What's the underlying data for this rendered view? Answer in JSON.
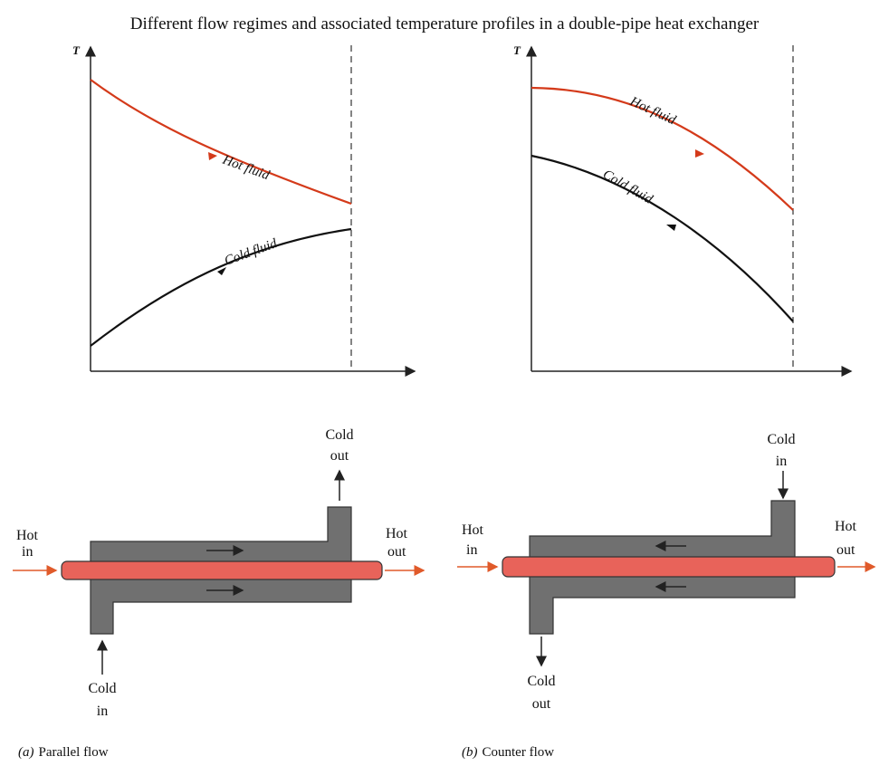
{
  "title": "Different flow regimes and associated temperature profiles in a double-pipe heat exchanger",
  "panels": [
    {
      "axis_label": "T",
      "hot_curve_label": "Hot fluid",
      "cold_curve_label": "Cold fluid",
      "hot_in": [
        "Hot",
        "in"
      ],
      "hot_out": [
        "Hot",
        "out"
      ],
      "cold_in": [
        "Cold",
        "in"
      ],
      "cold_out": [
        "Cold",
        "out"
      ],
      "caption_tag": "(a)",
      "caption": "Parallel flow"
    },
    {
      "axis_label": "T",
      "hot_curve_label": "Hot fluid",
      "cold_curve_label": "Cold fluid",
      "hot_in": [
        "Hot",
        "in"
      ],
      "hot_out": [
        "Hot",
        "out"
      ],
      "cold_in": [
        "Cold",
        "in"
      ],
      "cold_out": [
        "Cold",
        "out"
      ],
      "caption_tag": "(b)",
      "caption": "Counter flow"
    }
  ]
}
